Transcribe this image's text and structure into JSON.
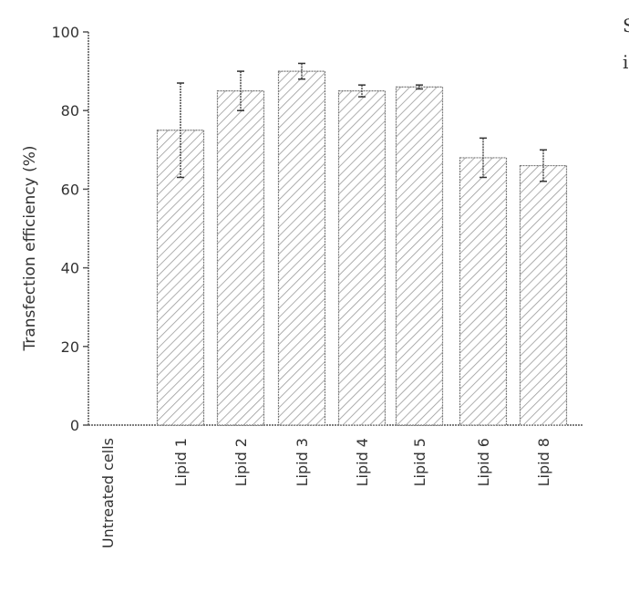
{
  "chart_data": {
    "type": "bar",
    "title": "",
    "xlabel": "",
    "ylabel": "Transfection efficiency (%)",
    "ylim": [
      0,
      100
    ],
    "yticks": [
      0,
      20,
      40,
      60,
      80,
      100
    ],
    "categories": [
      "Untreated cells",
      "Lipid 1",
      "Lipid 2",
      "Lipid 3",
      "Lipid 4",
      "Lipid 5",
      "Lipid 6",
      "Lipid 8"
    ],
    "values": [
      0,
      75,
      85,
      90,
      85,
      86,
      68,
      66
    ],
    "errors": [
      0,
      12,
      5,
      2,
      1.5,
      0.5,
      5,
      4
    ],
    "bar_fill": "hatched",
    "bar_color": "#9a9a9a"
  },
  "edge_text": [
    "S",
    "i"
  ]
}
